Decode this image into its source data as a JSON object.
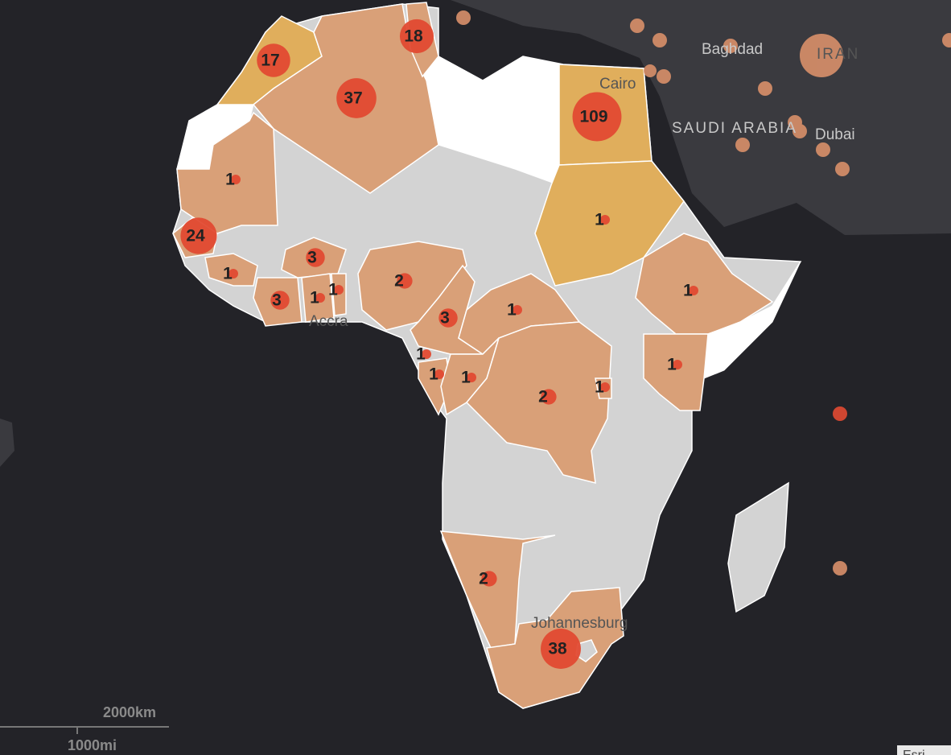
{
  "map": {
    "place_labels": [
      "Baghdad",
      "IRAN",
      "Cairo",
      "SAUDI ARABIA",
      "Dubai",
      "Accra",
      "Johannesburg"
    ],
    "cases": [
      17,
      18,
      37,
      109,
      1,
      1,
      24,
      1,
      3,
      3,
      1,
      1,
      2,
      3,
      1,
      1,
      1,
      1,
      1,
      2,
      1,
      1,
      2,
      38
    ],
    "scale": {
      "metric": "2000km",
      "imperial": "1000mi"
    },
    "attribution": "Esri"
  }
}
